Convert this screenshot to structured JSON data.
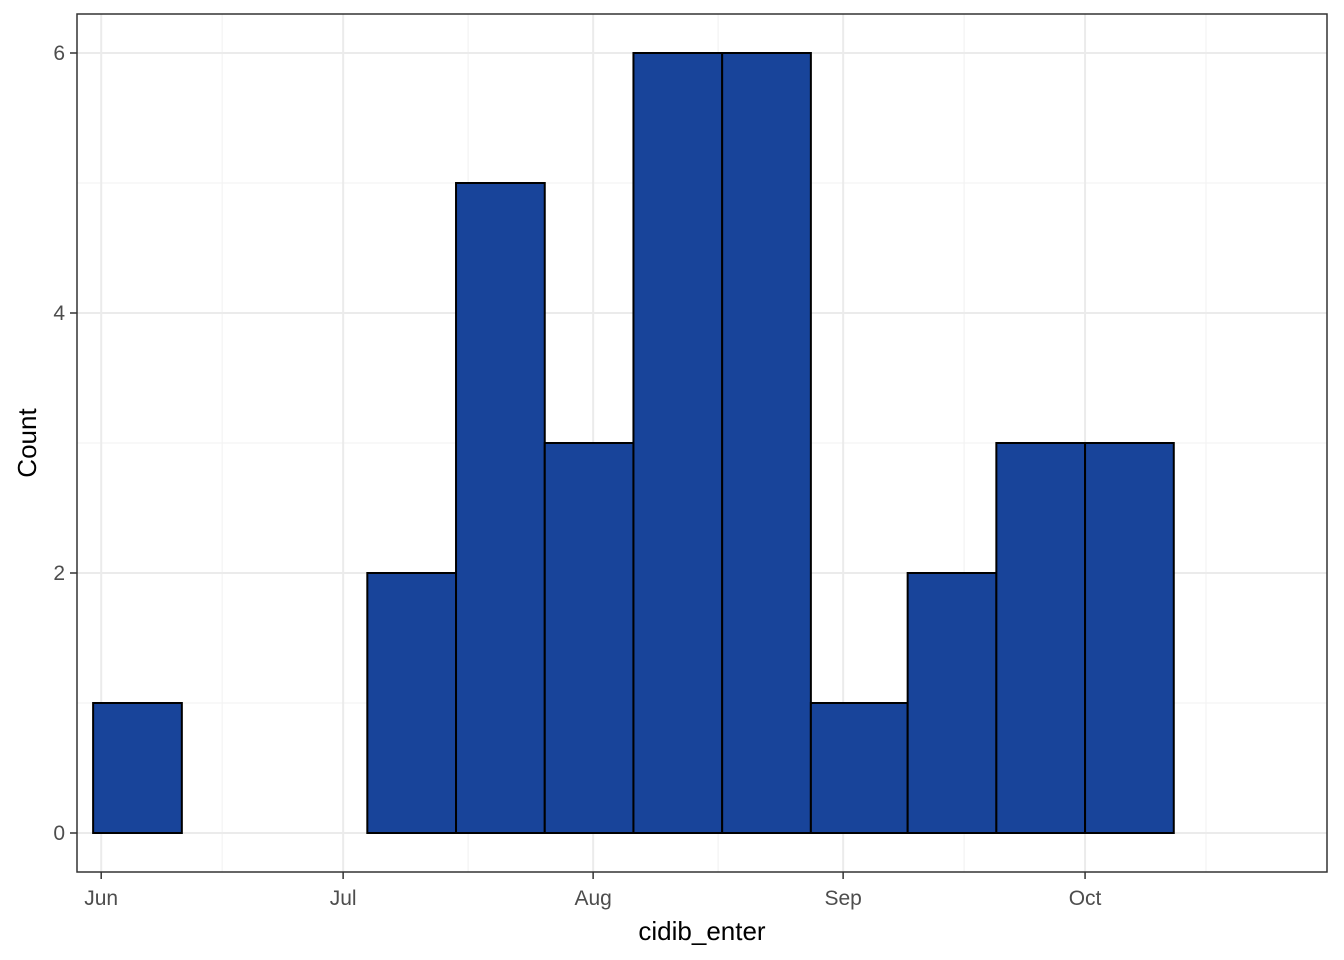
{
  "chart_data": {
    "type": "bar",
    "subtype": "histogram",
    "xlabel": "cidib_enter",
    "ylabel": "Count",
    "x_ticks": [
      {
        "label": "Jun",
        "date": "2021-06-01"
      },
      {
        "label": "Jul",
        "date": "2021-07-01"
      },
      {
        "label": "Aug",
        "date": "2021-08-01"
      },
      {
        "label": "Sep",
        "date": "2021-09-01"
      },
      {
        "label": "Oct",
        "date": "2021-10-01"
      }
    ],
    "y_ticks": [
      0,
      2,
      4,
      6
    ],
    "xlim": [
      "2021-05-29",
      "2021-10-31"
    ],
    "ylim": [
      -0.3,
      6.3
    ],
    "grid": true,
    "bins": [
      {
        "start": "2021-05-31",
        "end": "2021-06-11",
        "count": 1
      },
      {
        "start": "2021-06-11",
        "end": "2021-06-22",
        "count": 0
      },
      {
        "start": "2021-06-22",
        "end": "2021-07-04",
        "count": 0
      },
      {
        "start": "2021-07-04",
        "end": "2021-07-15",
        "count": 2
      },
      {
        "start": "2021-07-15",
        "end": "2021-07-26",
        "count": 5
      },
      {
        "start": "2021-07-26",
        "end": "2021-08-06",
        "count": 3
      },
      {
        "start": "2021-08-06",
        "end": "2021-08-17",
        "count": 6
      },
      {
        "start": "2021-08-17",
        "end": "2021-08-28",
        "count": 6
      },
      {
        "start": "2021-08-28",
        "end": "2021-09-09",
        "count": 1
      },
      {
        "start": "2021-09-09",
        "end": "2021-09-20",
        "count": 2
      },
      {
        "start": "2021-09-20",
        "end": "2021-10-01",
        "count": 3
      },
      {
        "start": "2021-10-01",
        "end": "2021-10-12",
        "count": 3
      }
    ],
    "colors": {
      "bar_fill": "#18449A",
      "bar_stroke": "#000000",
      "grid_major": "#EBEBEB",
      "grid_minor": "#F3F3F3",
      "panel_border": "#333333",
      "tick_text": "#4D4D4D"
    }
  }
}
